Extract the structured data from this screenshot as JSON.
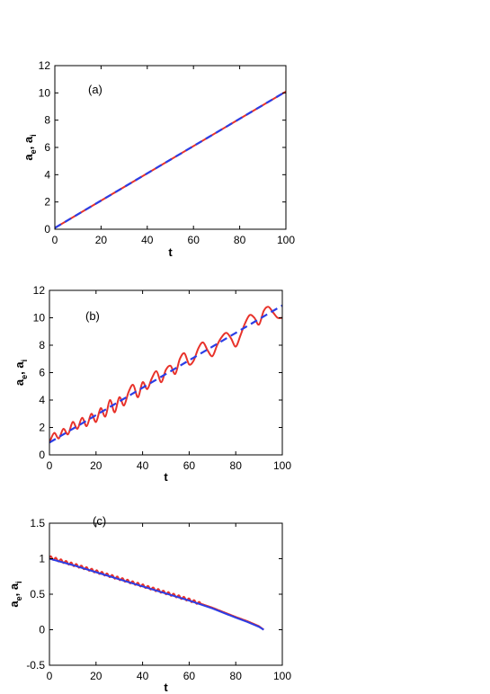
{
  "chart_data": [
    {
      "type": "line",
      "panel_label": "(a)",
      "xlabel": "t",
      "ylabel": {
        "main1": "a",
        "sub1": "e",
        "sep": ", ",
        "main2": "a",
        "sub2": "i"
      },
      "xlim": [
        0,
        100
      ],
      "ylim": [
        0,
        12
      ],
      "xticks": [
        0,
        20,
        40,
        60,
        80,
        100
      ],
      "yticks": [
        0,
        2,
        4,
        6,
        8,
        10,
        12
      ],
      "series": [
        {
          "role": "ion",
          "color": "#e8322a",
          "style": "solid",
          "x": [
            0,
            100
          ],
          "y": [
            0.1,
            10.1
          ]
        },
        {
          "role": "electron",
          "color": "#2b3ee6",
          "style": "dashed",
          "x": [
            0,
            100
          ],
          "y": [
            0.1,
            10.1
          ]
        }
      ]
    },
    {
      "type": "line",
      "panel_label": "(b)",
      "xlabel": "t",
      "ylabel": {
        "main1": "a",
        "sub1": "e",
        "sep": ", ",
        "main2": "a",
        "sub2": "i"
      },
      "xlim": [
        0,
        100
      ],
      "ylim": [
        0,
        12
      ],
      "xticks": [
        0,
        20,
        40,
        60,
        80,
        100
      ],
      "yticks": [
        0,
        2,
        4,
        6,
        8,
        10,
        12
      ],
      "series": [
        {
          "role": "electron",
          "color": "#e8322a",
          "style": "solid",
          "x": [
            0,
            2,
            4,
            6,
            8,
            10,
            12,
            14,
            16,
            18,
            20,
            22,
            24,
            26,
            28,
            30,
            32,
            34,
            36,
            38,
            40,
            42,
            44,
            46,
            48,
            50,
            52,
            54,
            56,
            58,
            60,
            62,
            64,
            66,
            68,
            70,
            72,
            74,
            76,
            78,
            80,
            82,
            84,
            86,
            88,
            90,
            92,
            94,
            96,
            98,
            100
          ],
          "y": [
            0.9,
            1.6,
            1.2,
            1.9,
            1.5,
            2.4,
            1.9,
            2.7,
            2.1,
            3.0,
            2.4,
            3.4,
            2.8,
            4.0,
            3.1,
            4.2,
            3.6,
            4.6,
            5.1,
            4.2,
            5.3,
            4.8,
            5.6,
            6.1,
            5.3,
            6.2,
            6.5,
            5.9,
            7.0,
            7.4,
            6.6,
            6.9,
            7.8,
            8.2,
            7.6,
            7.2,
            8.0,
            8.6,
            8.9,
            8.5,
            7.9,
            8.7,
            9.6,
            10.2,
            10.0,
            9.5,
            10.5,
            10.8,
            10.4,
            10.0,
            10.0
          ],
          "smooth": true
        },
        {
          "role": "ion",
          "color": "#2b3ee6",
          "style": "dashed",
          "x": [
            0,
            100
          ],
          "y": [
            0.9,
            10.9
          ]
        }
      ]
    },
    {
      "type": "line",
      "panel_label": "(c)",
      "xlabel": "t",
      "ylabel": {
        "main1": "a",
        "sub1": "e",
        "sep": ", ",
        "main2": "a",
        "sub2": "i"
      },
      "xlim": [
        0,
        100
      ],
      "ylim": [
        -0.5,
        1.5
      ],
      "xticks": [
        0,
        20,
        40,
        60,
        80,
        100
      ],
      "yticks": [
        -0.5,
        0,
        0.5,
        1,
        1.5
      ],
      "series": [
        {
          "role": "electron",
          "color": "#e8322a",
          "style": "solid",
          "x": [
            0,
            10,
            20,
            30,
            40,
            50,
            60,
            70,
            80,
            85,
            90,
            92
          ],
          "y": [
            1.02,
            0.92,
            0.82,
            0.72,
            0.62,
            0.52,
            0.42,
            0.31,
            0.18,
            0.12,
            0.05,
            0.0
          ],
          "oscillation": {
            "amplitude": 0.02,
            "period": 2.2,
            "until": 65
          }
        },
        {
          "role": "ion",
          "color": "#2b3ee6",
          "style": "solid",
          "x": [
            0,
            10,
            20,
            30,
            40,
            50,
            60,
            70,
            80,
            85,
            90,
            92
          ],
          "y": [
            1.0,
            0.91,
            0.81,
            0.71,
            0.61,
            0.51,
            0.41,
            0.3,
            0.17,
            0.11,
            0.04,
            0.0
          ]
        }
      ]
    }
  ]
}
